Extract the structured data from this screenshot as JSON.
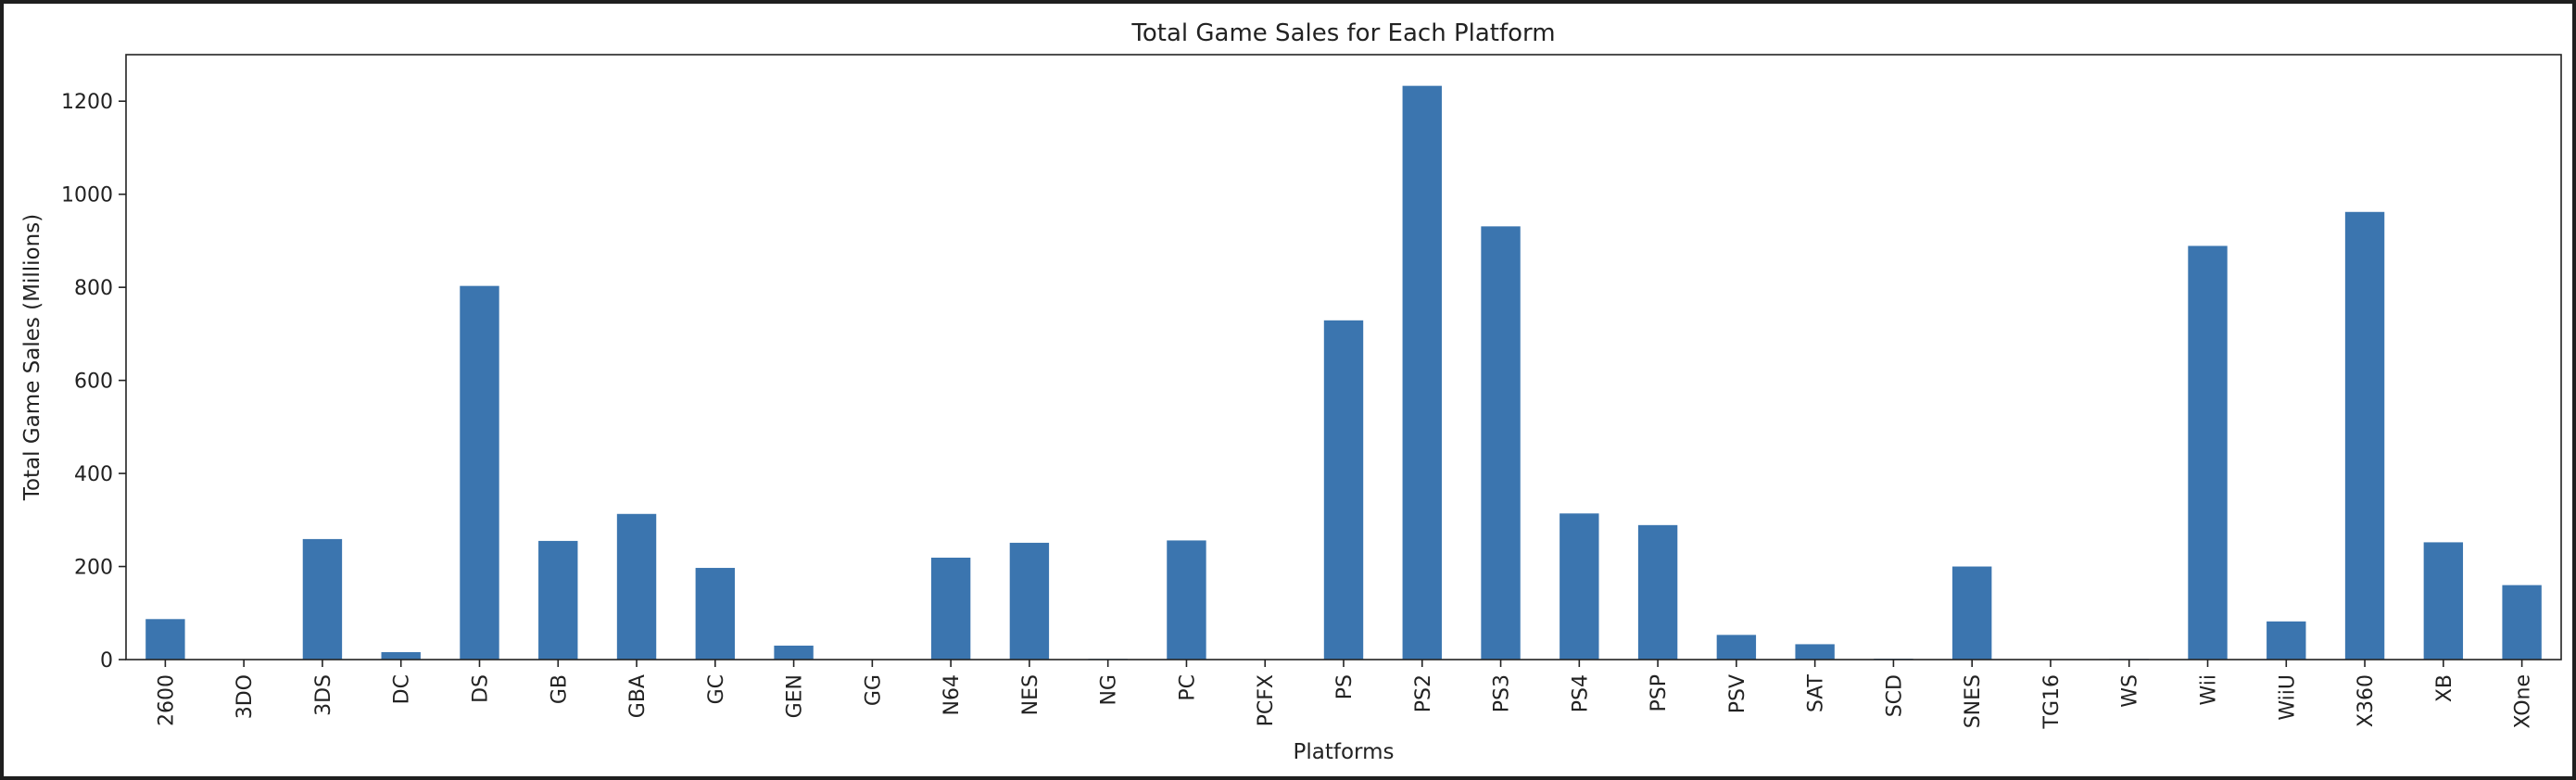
{
  "chart_data": {
    "type": "bar",
    "title": "Total Game Sales for Each Platform",
    "xlabel": "Platforms",
    "ylabel": "Total Game Sales (Millions)",
    "ylim": [
      0,
      1300
    ],
    "yticks": [
      0,
      200,
      400,
      600,
      800,
      1000,
      1200
    ],
    "grid": false,
    "legend": "none",
    "bar_color": "#3b75af",
    "categories": [
      "2600",
      "3DO",
      "3DS",
      "DC",
      "DS",
      "GB",
      "GBA",
      "GC",
      "GEN",
      "GG",
      "N64",
      "NES",
      "NG",
      "PC",
      "PCFX",
      "PS",
      "PS2",
      "PS3",
      "PS4",
      "PSP",
      "PSV",
      "SAT",
      "SCD",
      "SNES",
      "TG16",
      "WS",
      "Wii",
      "WiiU",
      "X360",
      "XB",
      "XOne"
    ],
    "values": [
      87,
      0.1,
      259,
      16,
      803,
      255,
      313,
      197,
      30,
      0.04,
      219,
      251,
      1.5,
      256,
      0.03,
      729,
      1233,
      931,
      314,
      289,
      53,
      33,
      1.9,
      200,
      0.16,
      1.4,
      889,
      82,
      962,
      252,
      160
    ]
  }
}
